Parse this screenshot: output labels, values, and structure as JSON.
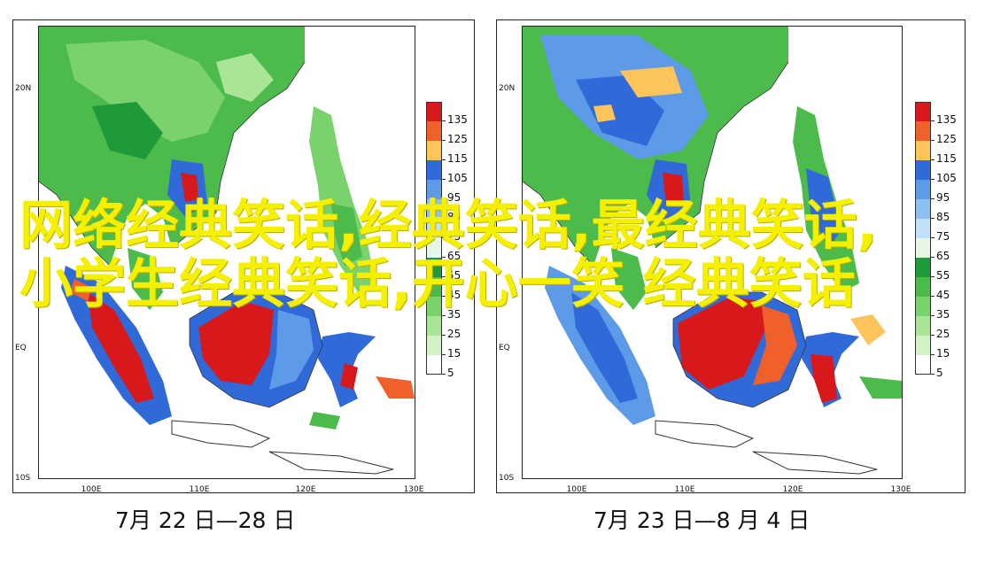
{
  "overlay_title": "网络经典笑话,经典笑话,最经典笑话,小学生经典笑话,开心一笑 经典笑话",
  "maps": [
    {
      "caption": "7月 22 日—28 日",
      "lat_labels": [
        "20N",
        "EQ",
        "10S"
      ],
      "lon_labels": [
        "100E",
        "110E",
        "120E",
        "130E"
      ]
    },
    {
      "caption": "7月 23 日—8 月 4 日",
      "lat_labels": [
        "20N",
        "EQ",
        "10S"
      ],
      "lon_labels": [
        "100E",
        "110E",
        "120E",
        "130E"
      ]
    }
  ],
  "legend": {
    "values": [
      "135",
      "125",
      "115",
      "105",
      "95",
      "85",
      "75",
      "65",
      "55",
      "45",
      "35",
      "25",
      "15",
      "5"
    ],
    "colors": [
      "#d7191c",
      "#f0602a",
      "#fdc45c",
      "#2f6ad8",
      "#5d9ae8",
      "#8cc0f0",
      "#bfe0f8",
      "#e6f7e6",
      "#1f9a3a",
      "#4cbb4c",
      "#79d26b",
      "#a9e596",
      "#d4f2c8",
      "#ffffff"
    ]
  }
}
